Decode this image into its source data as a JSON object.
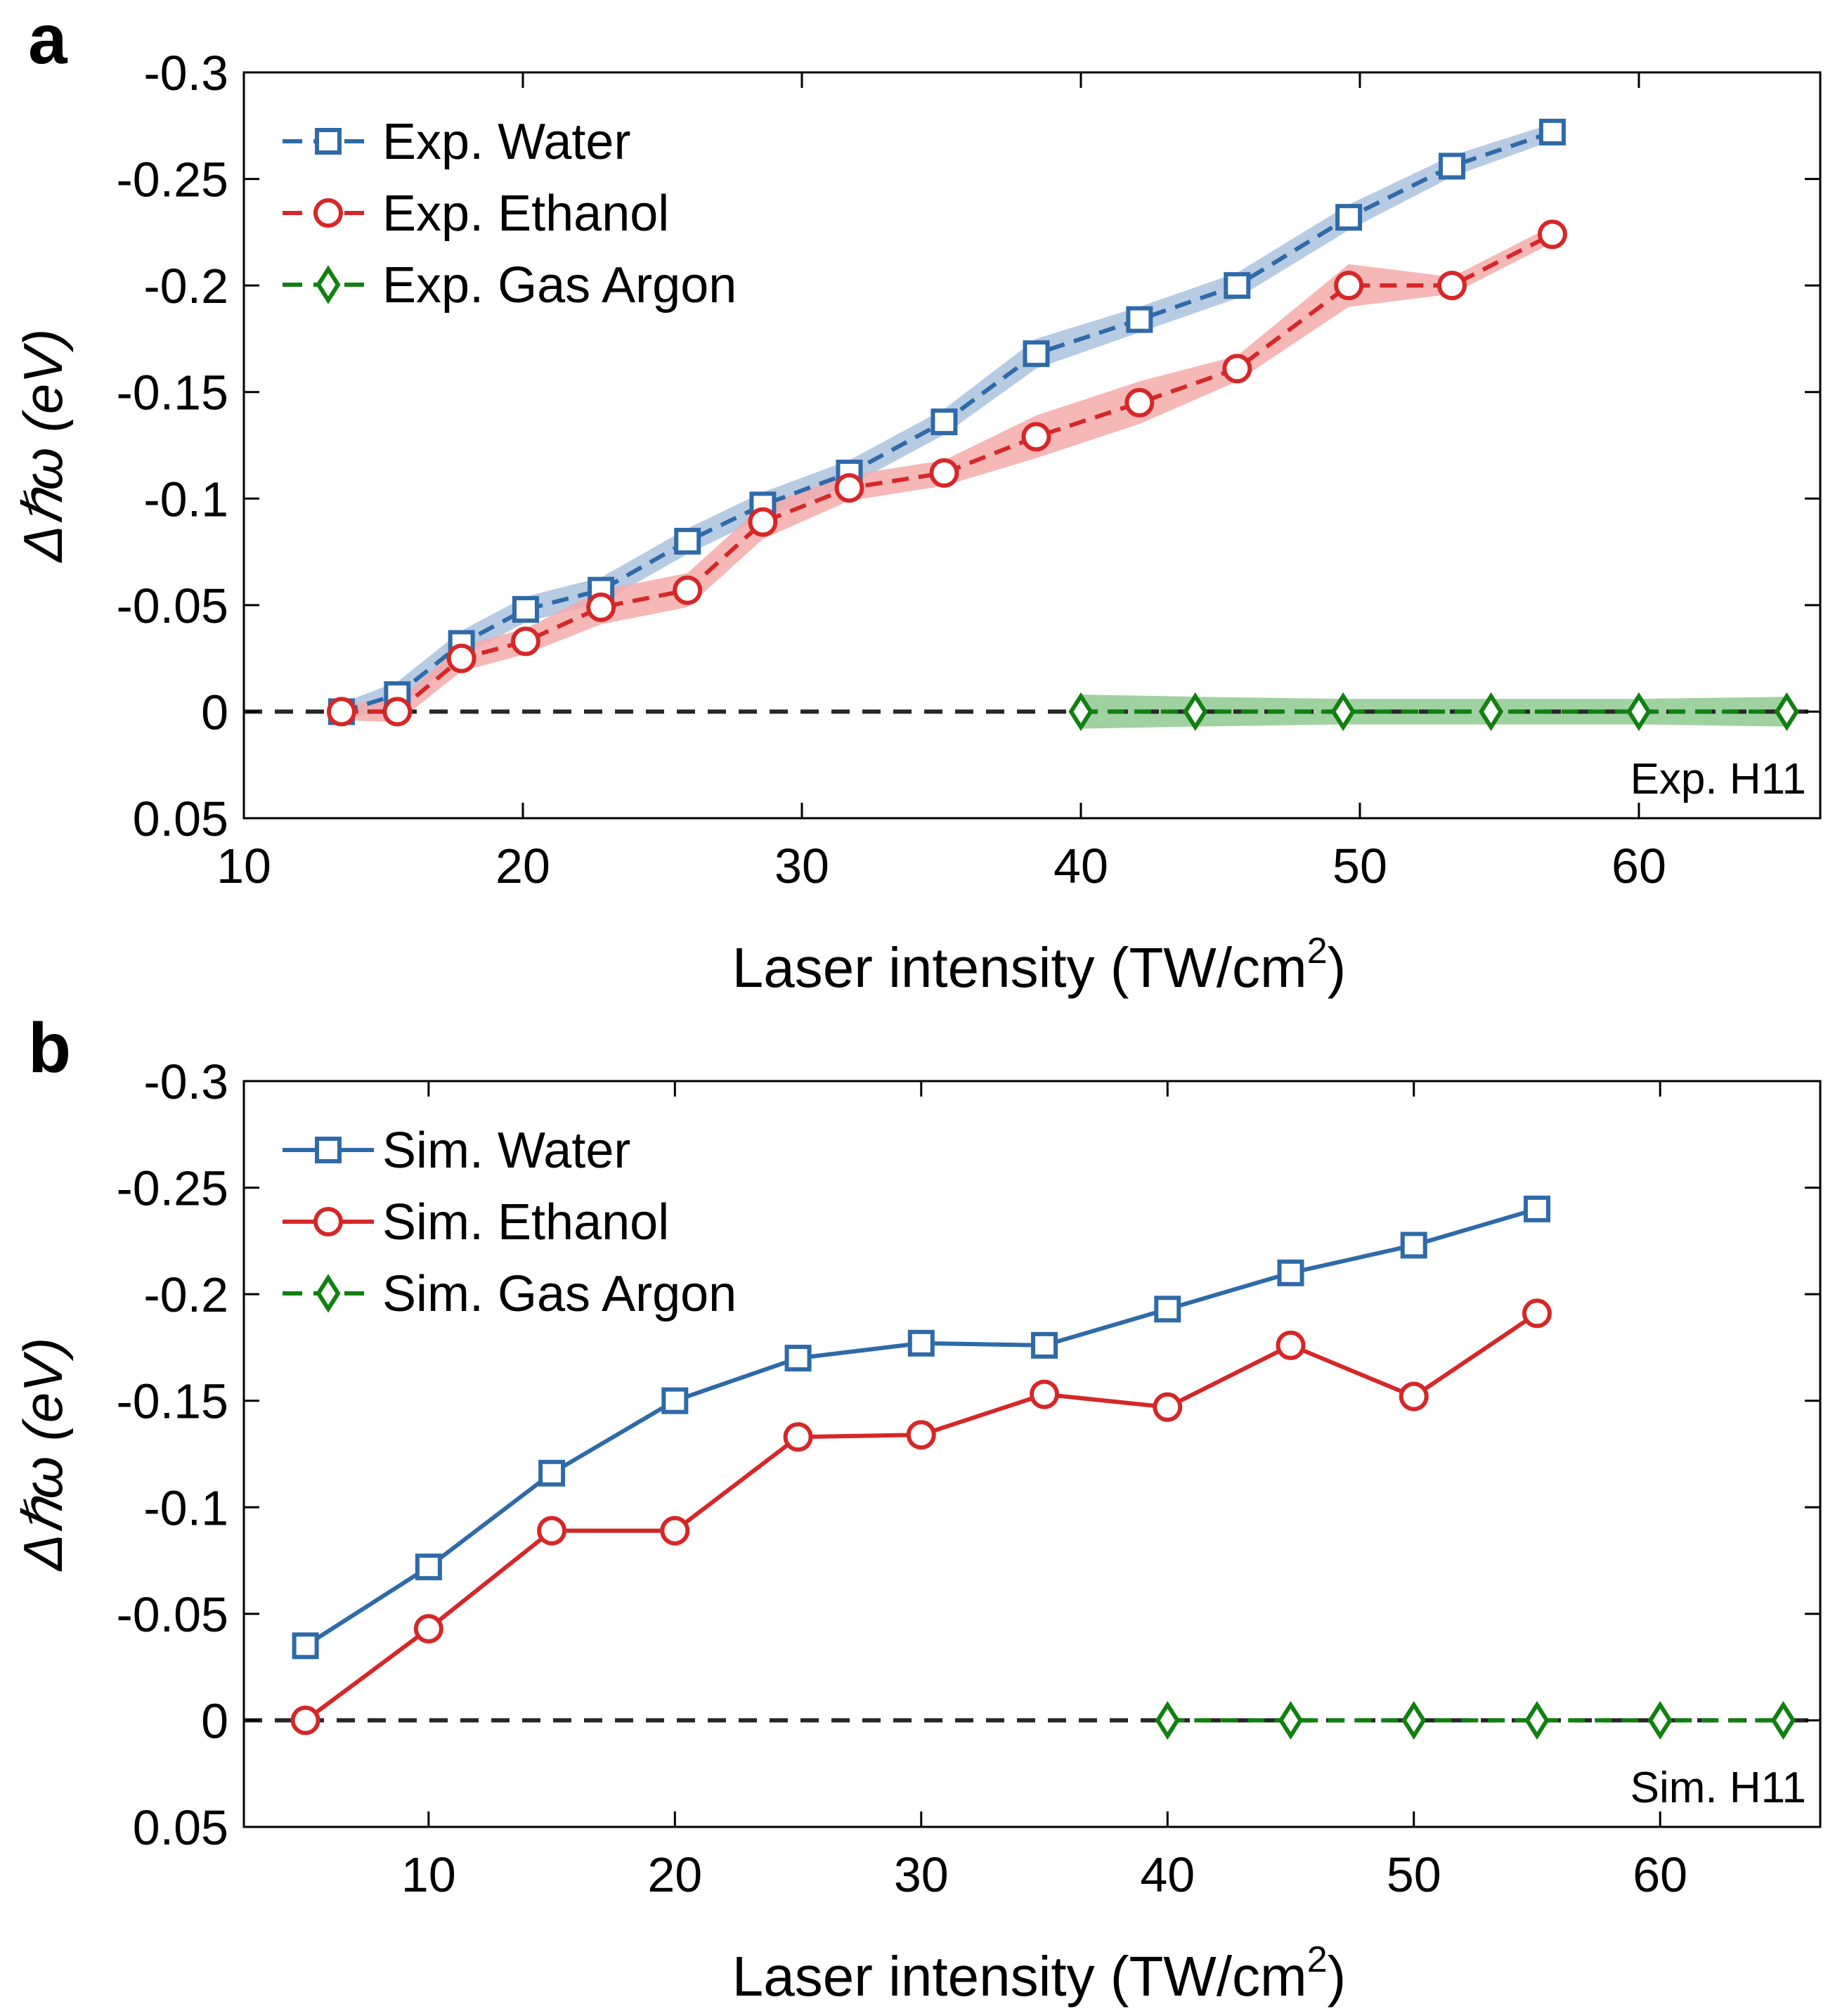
{
  "chart_data": [
    {
      "type": "line",
      "panel_label": "a",
      "xlabel": "Laser intensity (TW/cm",
      "xlabel_sup": "2",
      "xlabel_end": ")",
      "ylabel": "Δℏω (eV)",
      "xlim": [
        10,
        66.5
      ],
      "ylim": [
        -0.3,
        0.05
      ],
      "y_reversed": true,
      "xticks": [
        10,
        20,
        30,
        40,
        50,
        60
      ],
      "xtick_labels": [
        "10",
        "20",
        "30",
        "40",
        "50",
        "60"
      ],
      "yticks": [
        -0.3,
        -0.25,
        -0.2,
        -0.15,
        -0.1,
        -0.05,
        0,
        0.05
      ],
      "ytick_labels": [
        "-0.3",
        "-0.25",
        "-0.2",
        "-0.15",
        "-0.1",
        "-0.05",
        "0",
        "0.05"
      ],
      "annotation": "Exp. H11",
      "legend_position": "top-left",
      "zero_line": true,
      "series": [
        {
          "name": "Exp. Water",
          "color": "#2f6aa8",
          "band_color": "#aac2de",
          "marker": "square",
          "dashed": true,
          "x": [
            13.5,
            15.5,
            17.8,
            20.1,
            22.8,
            25.9,
            28.6,
            31.7,
            35.1,
            38.4,
            42.1,
            45.6,
            49.6,
            53.3,
            56.9
          ],
          "y": [
            0,
            -0.008,
            -0.032,
            -0.048,
            -0.057,
            -0.08,
            -0.097,
            -0.112,
            -0.136,
            -0.168,
            -0.184,
            -0.2,
            -0.232,
            -0.256,
            -0.272
          ],
          "band_halfwidth": [
            0.004,
            0.006,
            0.006,
            0.006,
            0.006,
            0.006,
            0.006,
            0.006,
            0.006,
            0.007,
            0.006,
            0.006,
            0.006,
            0.005,
            0.004
          ]
        },
        {
          "name": "Exp. Ethanol",
          "color": "#d62728",
          "band_color": "#f4aaaa",
          "marker": "circle",
          "dashed": true,
          "x": [
            13.5,
            15.5,
            17.8,
            20.1,
            22.8,
            25.9,
            28.6,
            31.7,
            35.1,
            38.4,
            42.1,
            45.6,
            49.6,
            53.3,
            56.9
          ],
          "y": [
            0,
            0,
            -0.025,
            -0.033,
            -0.049,
            -0.057,
            -0.089,
            -0.105,
            -0.112,
            -0.129,
            -0.145,
            -0.161,
            -0.2,
            -0.2,
            -0.224
          ],
          "band_halfwidth": [
            0.004,
            0.005,
            0.006,
            0.006,
            0.008,
            0.008,
            0.008,
            0.006,
            0.006,
            0.01,
            0.01,
            0.006,
            0.01,
            0.004,
            0.004
          ]
        },
        {
          "name": "Exp. Gas Argon",
          "color": "#118011",
          "band_color": "#8fc98f",
          "marker": "diamond",
          "dashed": true,
          "x": [
            40,
            44.1,
            49.4,
            54.7,
            60,
            65.3
          ],
          "y": [
            0,
            0,
            0,
            0,
            0,
            0
          ],
          "band_halfwidth": [
            0.008,
            0.007,
            0.006,
            0.006,
            0.006,
            0.007
          ]
        }
      ]
    },
    {
      "type": "line",
      "panel_label": "b",
      "xlabel": "Laser intensity (TW/cm",
      "xlabel_sup": "2",
      "xlabel_end": ")",
      "ylabel": "Δℏω (eV)",
      "xlim": [
        2.5,
        66.5
      ],
      "ylim": [
        -0.3,
        0.05
      ],
      "y_reversed": true,
      "xticks": [
        10,
        20,
        30,
        40,
        50,
        60
      ],
      "xtick_labels": [
        "10",
        "20",
        "30",
        "40",
        "50",
        "60"
      ],
      "yticks": [
        -0.3,
        -0.25,
        -0.2,
        -0.15,
        -0.1,
        -0.05,
        0,
        0.05
      ],
      "ytick_labels": [
        "-0.3",
        "-0.25",
        "-0.2",
        "-0.15",
        "-0.1",
        "-0.05",
        "0",
        "0.05"
      ],
      "annotation": "Sim. H11",
      "legend_position": "top-left",
      "zero_line": true,
      "series": [
        {
          "name": "Sim. Water",
          "color": "#2f6aa8",
          "marker": "square",
          "dashed": false,
          "x": [
            5,
            10,
            15,
            20,
            25,
            30,
            35,
            40,
            45,
            50,
            55
          ],
          "y": [
            -0.035,
            -0.072,
            -0.116,
            -0.15,
            -0.17,
            -0.177,
            -0.176,
            -0.193,
            -0.21,
            -0.223,
            -0.24
          ]
        },
        {
          "name": "Sim. Ethanol",
          "color": "#d62728",
          "marker": "circle",
          "dashed": false,
          "x": [
            5,
            10,
            15,
            20,
            25,
            30,
            35,
            40,
            45,
            50,
            55
          ],
          "y": [
            0,
            -0.043,
            -0.089,
            -0.089,
            -0.133,
            -0.134,
            -0.153,
            -0.147,
            -0.176,
            -0.152,
            -0.191
          ]
        },
        {
          "name": "Sim. Gas Argon",
          "color": "#118011",
          "marker": "diamond",
          "dashed": true,
          "x": [
            40,
            45,
            50,
            55,
            60,
            65
          ],
          "y": [
            0,
            0,
            0,
            0,
            0,
            0
          ]
        }
      ]
    }
  ]
}
